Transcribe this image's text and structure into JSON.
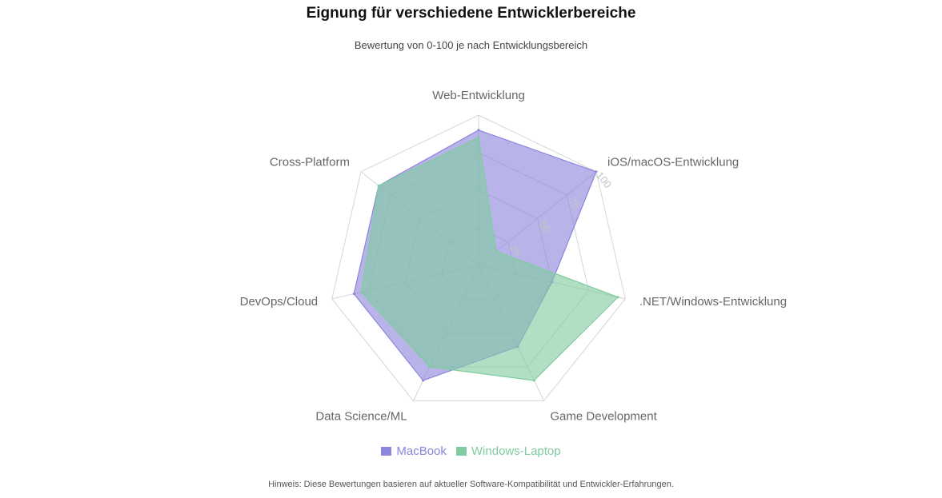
{
  "chart_data": {
    "type": "radar",
    "title": "Eignung für verschiedene Entwicklerbereiche",
    "subtitle": "Bewertung von 0-100 je nach Entwicklungsbereich",
    "axes": [
      "Web-Entwicklung",
      "iOS/macOS-Entwicklung",
      ".NET/Windows-Entwicklung",
      "Game Development",
      "Data Science/ML",
      "DevOps/Cloud",
      "Cross-Platform"
    ],
    "rlim": [
      0,
      100
    ],
    "ticks": [
      "25",
      "50",
      "75",
      "100"
    ],
    "tick_values": [
      25,
      50,
      75,
      100
    ],
    "grid": true,
    "legend_position": "bottom",
    "series": [
      {
        "name": "MacBook",
        "values": [
          90,
          100,
          50,
          60,
          85,
          85,
          85
        ],
        "color": "#8c86dc"
      },
      {
        "name": "Windows-Laptop",
        "values": [
          85,
          15,
          95,
          85,
          75,
          80,
          85
        ],
        "color": "#80ccA0"
      }
    ]
  },
  "footnote": "Hinweis: Diese Bewertungen basieren auf aktueller Software-Kompatibilität und Entwickler-Erfahrungen."
}
